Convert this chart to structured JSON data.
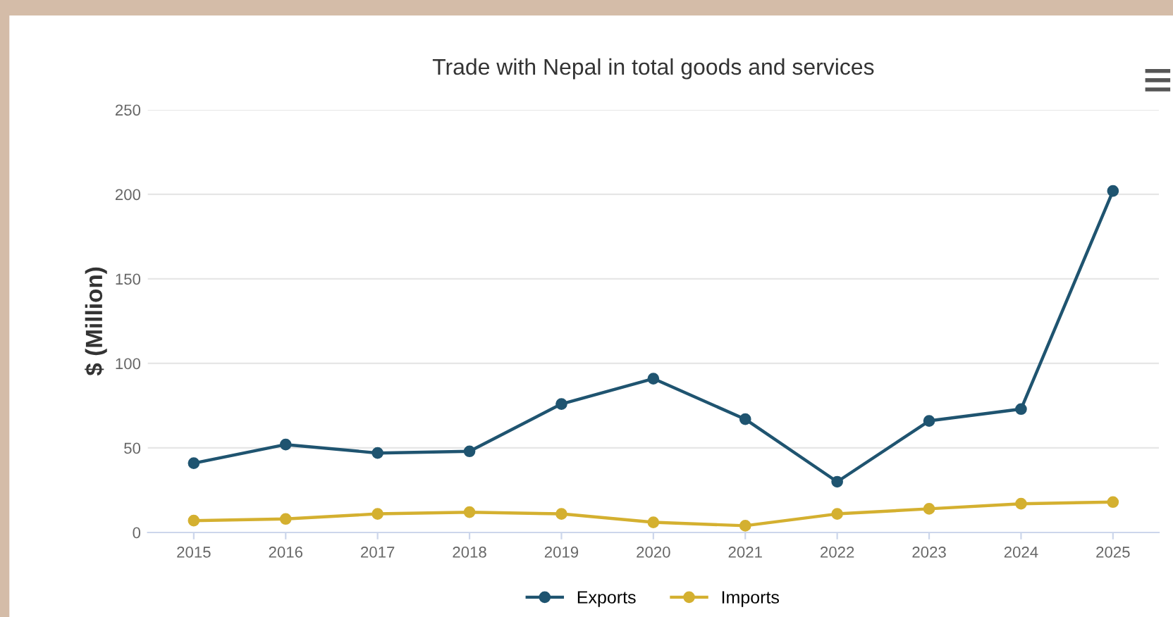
{
  "chart_data": {
    "type": "line",
    "title": "Trade with Nepal in total goods and services",
    "ylabel": "$ (Million)",
    "categories": [
      "2015",
      "2016",
      "2017",
      "2018",
      "2019",
      "2020",
      "2021",
      "2022",
      "2023",
      "2024",
      "2025"
    ],
    "series": [
      {
        "name": "Exports",
        "color": "#1f5470",
        "values": [
          41,
          52,
          47,
          48,
          76,
          91,
          67,
          30,
          66,
          73,
          202
        ]
      },
      {
        "name": "Imports",
        "color": "#d4b030",
        "values": [
          7,
          8,
          11,
          12,
          11,
          6,
          4,
          11,
          14,
          17,
          18
        ]
      }
    ],
    "ylim": [
      0,
      250
    ],
    "yticks": [
      0,
      50,
      100,
      150,
      200,
      250
    ],
    "grid": "y",
    "legend": "bottom",
    "marker": "circle",
    "line_style": "solid"
  }
}
